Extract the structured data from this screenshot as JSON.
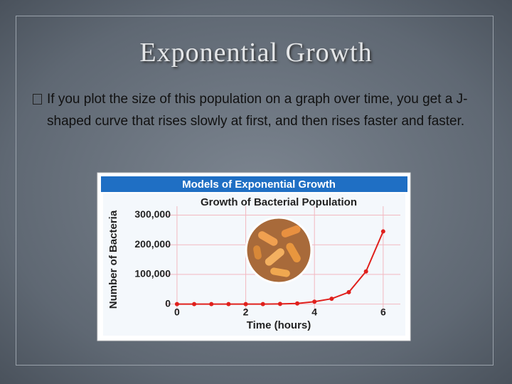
{
  "slide": {
    "title": "Exponential Growth",
    "bullets": [
      "If you plot the size of this population on a graph over time, you get a J-shaped curve that rises slowly at first, and then rises faster and faster."
    ]
  },
  "chart_data": {
    "type": "line",
    "banner": "Models of Exponential Growth",
    "title": "Growth of Bacterial Population",
    "xlabel": "Time (hours)",
    "ylabel": "Number of Bacteria",
    "x": [
      0,
      0.5,
      1,
      1.5,
      2,
      2.5,
      3,
      3.5,
      4,
      4.5,
      5,
      5.5,
      6
    ],
    "series": [
      {
        "color": "#e0201c",
        "values": [
          0,
          0,
          0,
          0,
          0,
          0,
          500,
          2000,
          8000,
          18000,
          40000,
          110000,
          245000
        ]
      }
    ],
    "xlim": [
      -0.35,
      6.5
    ],
    "xticks": [
      0,
      2,
      4,
      6
    ],
    "ylim": [
      -25000,
      330000
    ],
    "yticks": [
      0,
      {
        "value": 100000,
        "label": "100,000"
      },
      {
        "value": 200000,
        "label": "200,000"
      },
      {
        "value": 300000,
        "label": "300,000"
      }
    ],
    "grid": true
  }
}
